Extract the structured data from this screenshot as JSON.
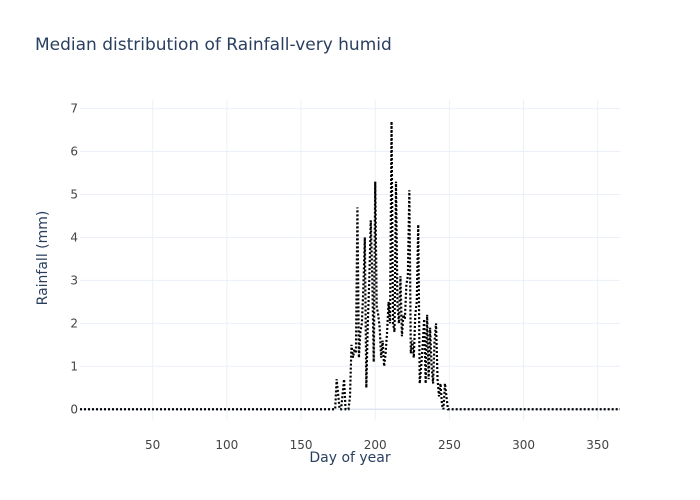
{
  "chart_data": {
    "type": "line",
    "title": "Median distribution of Rainfall-very humid",
    "xlabel": "Day of year",
    "ylabel": "Rainfall (mm)",
    "xlim": [
      1,
      365
    ],
    "ylim": [
      -0.25,
      7.2
    ],
    "x_ticks": [
      50,
      100,
      150,
      200,
      250,
      300,
      350
    ],
    "y_ticks": [
      0,
      1,
      2,
      3,
      4,
      5,
      6,
      7
    ],
    "grid": true,
    "legend": "none",
    "line_style": "dotted",
    "line_color": "#000000",
    "series": [
      {
        "x": [
          1,
          173,
          174,
          176,
          177,
          179,
          180,
          182,
          183,
          184,
          185,
          186,
          187,
          188,
          189,
          190,
          191,
          192,
          193,
          194,
          195,
          196,
          197,
          198,
          199,
          200,
          201,
          202,
          203,
          204,
          205,
          206,
          207,
          208,
          209,
          210,
          211,
          212,
          213,
          214,
          215,
          216,
          217,
          218,
          219,
          220,
          221,
          222,
          223,
          224,
          225,
          226,
          227,
          228,
          229,
          230,
          231,
          232,
          233,
          234,
          235,
          236,
          237,
          238,
          239,
          240,
          241,
          242,
          243,
          244,
          245,
          246,
          247,
          248,
          249,
          250,
          251,
          252,
          253,
          254,
          255,
          256,
          257,
          365
        ],
        "y": [
          0,
          0,
          0.7,
          0,
          0,
          0.7,
          0,
          0,
          0.3,
          1.5,
          1.2,
          1.4,
          1.3,
          4.7,
          1.2,
          1.8,
          2.0,
          2.8,
          4.0,
          0.5,
          2.0,
          3.0,
          4.4,
          3.1,
          1.1,
          5.3,
          2.4,
          2.2,
          1.9,
          1.2,
          1.6,
          1.0,
          1.3,
          1.8,
          2.5,
          2.0,
          6.7,
          2.0,
          1.8,
          5.3,
          2.4,
          2.0,
          3.1,
          1.7,
          2.2,
          2.1,
          2.9,
          3.1,
          5.1,
          1.3,
          1.6,
          1.2,
          2.2,
          2.5,
          4.3,
          0.6,
          1.0,
          1.5,
          2.1,
          0.6,
          2.2,
          0.7,
          1.9,
          1.0,
          0.6,
          1.6,
          2.0,
          0.7,
          0.3,
          0.6,
          0.1,
          0.0,
          0.6,
          0.3,
          0.0,
          0,
          0,
          0,
          0,
          0,
          0,
          0,
          0,
          0
        ]
      }
    ]
  }
}
